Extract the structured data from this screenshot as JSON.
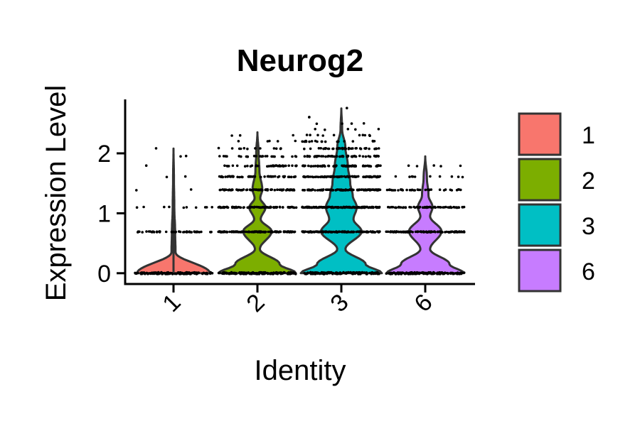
{
  "chart_data": {
    "type": "violin",
    "title": "Neurog2",
    "xlabel": "Identity",
    "ylabel": "Expression Level",
    "ylim": [
      -0.18,
      2.9
    ],
    "yticks": [
      0,
      1,
      2
    ],
    "categories": [
      "1",
      "2",
      "3",
      "6"
    ],
    "colors": [
      "#F8766D",
      "#7CAE00",
      "#00BFC4",
      "#C77CFF"
    ],
    "legend": {
      "position": "right",
      "entries": [
        "1",
        "2",
        "3",
        "6"
      ]
    },
    "grid": false,
    "violins": [
      {
        "category": "1",
        "max": 2.08,
        "levels": [
          0,
          0.69,
          1.1,
          1.39,
          1.61,
          1.79,
          1.95,
          2.08
        ],
        "counts": [
          120,
          45,
          10,
          2,
          2,
          1,
          2,
          1
        ],
        "density": [
          [
            0,
            0.9
          ],
          [
            0.35,
            0.05
          ],
          [
            0.69,
            0.04
          ],
          [
            1.1,
            0.02
          ],
          [
            1.6,
            0.01
          ],
          [
            2.08,
            0
          ]
        ]
      },
      {
        "category": "2",
        "max": 2.35,
        "levels": [
          0,
          0.69,
          1.1,
          1.39,
          1.61,
          1.79,
          1.95,
          2.08,
          2.2,
          2.3
        ],
        "counts": [
          130,
          120,
          100,
          80,
          55,
          40,
          25,
          12,
          5,
          3
        ],
        "density": [
          [
            0,
            0.95
          ],
          [
            0.15,
            0.55
          ],
          [
            0.4,
            0.06
          ],
          [
            0.7,
            0.35
          ],
          [
            0.9,
            0.08
          ],
          [
            1.1,
            0.2
          ],
          [
            1.25,
            0.07
          ],
          [
            1.4,
            0.12
          ],
          [
            1.7,
            0.05
          ],
          [
            2.0,
            0.03
          ],
          [
            2.35,
            0
          ]
        ]
      },
      {
        "category": "3",
        "max": 2.75,
        "levels": [
          0,
          0.69,
          1.1,
          1.39,
          1.61,
          1.79,
          1.95,
          2.08,
          2.2,
          2.3,
          2.4,
          2.5,
          2.6,
          2.75
        ],
        "counts": [
          130,
          140,
          130,
          110,
          85,
          70,
          55,
          40,
          20,
          10,
          5,
          4,
          2,
          1
        ],
        "density": [
          [
            0,
            1.0
          ],
          [
            0.15,
            0.6
          ],
          [
            0.4,
            0.1
          ],
          [
            0.7,
            0.5
          ],
          [
            0.9,
            0.3
          ],
          [
            1.1,
            0.38
          ],
          [
            1.3,
            0.28
          ],
          [
            1.5,
            0.22
          ],
          [
            1.8,
            0.16
          ],
          [
            2.1,
            0.1
          ],
          [
            2.4,
            0.02
          ],
          [
            2.75,
            0
          ]
        ]
      },
      {
        "category": "6",
        "max": 1.95,
        "levels": [
          0,
          0.69,
          1.1,
          1.39,
          1.61,
          1.79
        ],
        "counts": [
          120,
          100,
          60,
          35,
          10,
          5
        ],
        "density": [
          [
            0,
            0.95
          ],
          [
            0.15,
            0.6
          ],
          [
            0.4,
            0.12
          ],
          [
            0.7,
            0.4
          ],
          [
            0.95,
            0.12
          ],
          [
            1.1,
            0.18
          ],
          [
            1.3,
            0.08
          ],
          [
            1.6,
            0.04
          ],
          [
            1.95,
            0
          ]
        ]
      }
    ]
  }
}
